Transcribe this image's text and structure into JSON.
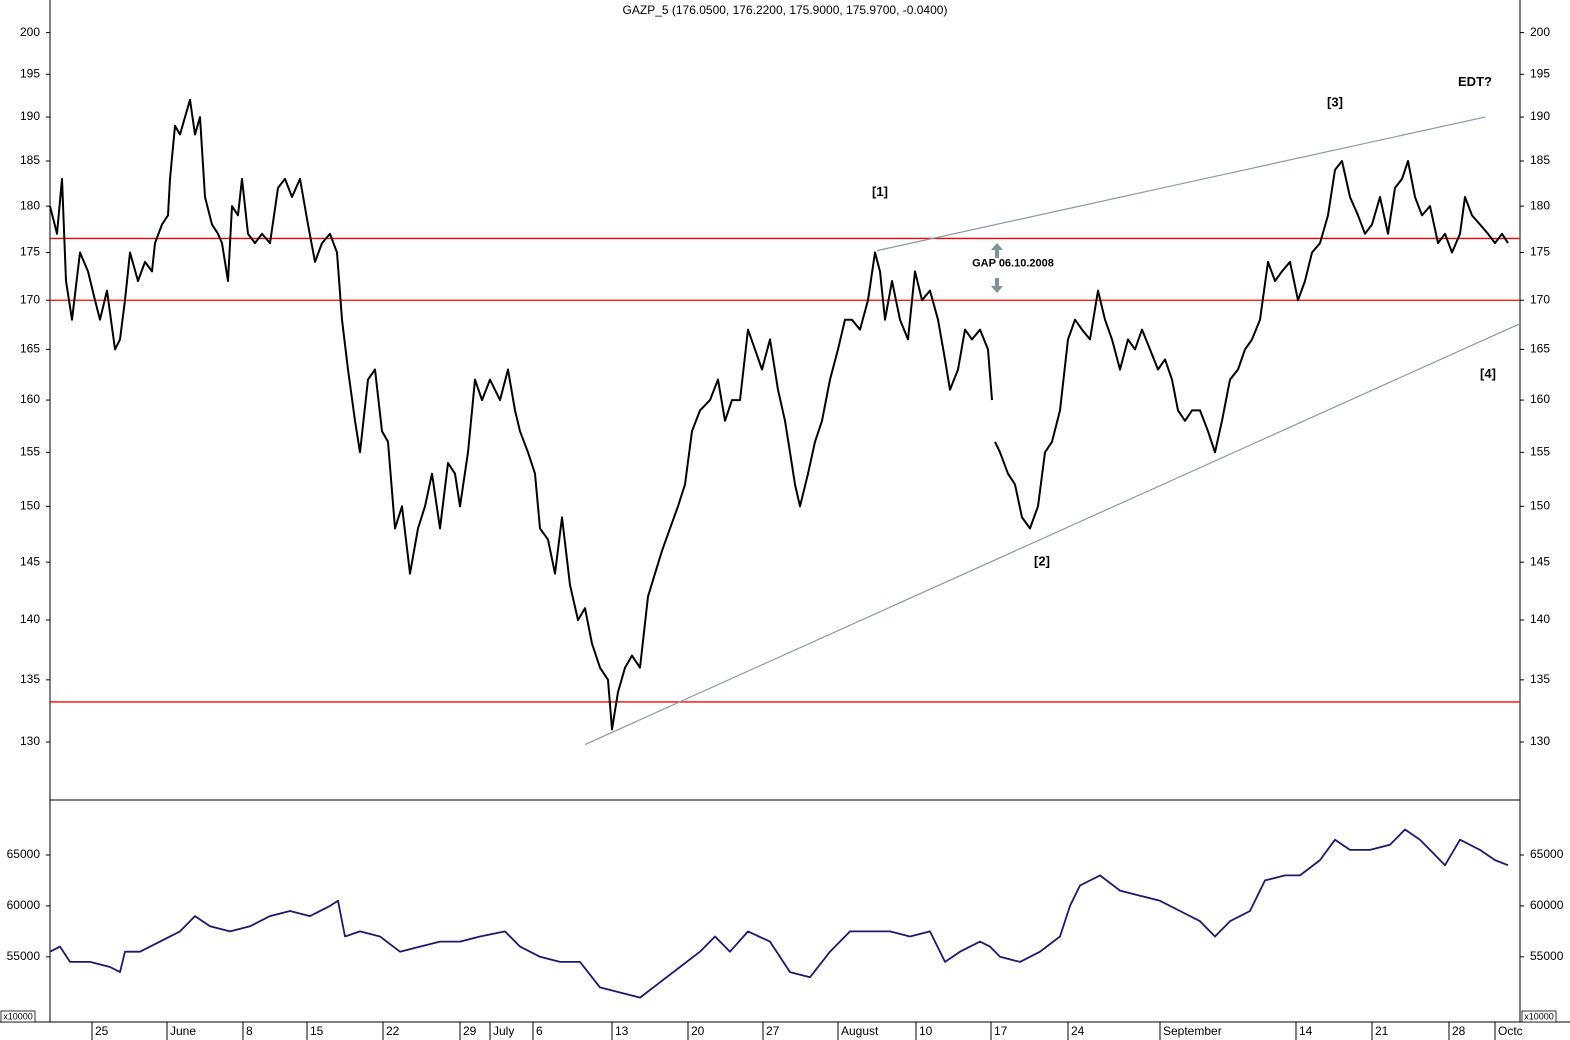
{
  "chart_data": [
    {
      "type": "line",
      "title": "GAZP_5 (176.0500, 176.2200, 175.9000, 175.9700, -0.0400)",
      "log_scale": true,
      "color": "#000000",
      "xlim": [
        0,
        1470
      ],
      "ylim": [
        125.5,
        204
      ],
      "yticks": [
        130,
        135,
        140,
        145,
        150,
        155,
        160,
        165,
        170,
        175,
        180,
        185,
        190,
        195,
        200
      ],
      "x": [
        0,
        7,
        12,
        16,
        22,
        30,
        38,
        45,
        50,
        57,
        65,
        70,
        75,
        80,
        88,
        95,
        102,
        105,
        112,
        118,
        120,
        125,
        130,
        135,
        140,
        145,
        150,
        155,
        162,
        168,
        172,
        178,
        182,
        188,
        192,
        198,
        205,
        212,
        220,
        228,
        235,
        242,
        250,
        258,
        265,
        272,
        280,
        287,
        292,
        298,
        305,
        310,
        318,
        325,
        332,
        338,
        345,
        352,
        360,
        368,
        375,
        382,
        390,
        398,
        405,
        410,
        418,
        425,
        432,
        440,
        450,
        458,
        465,
        470,
        478,
        485,
        490,
        498,
        505,
        512,
        520,
        528,
        535,
        542,
        550,
        558,
        562,
        568,
        575,
        582,
        590,
        598,
        605,
        612,
        620,
        628,
        635,
        642,
        650,
        660,
        668,
        675,
        682,
        690,
        698,
        705,
        712,
        720,
        728,
        735,
        740,
        745,
        750,
        758,
        765,
        772,
        780,
        788,
        795,
        802,
        810,
        818,
        825,
        830,
        835,
        842,
        850,
        858,
        865,
        872,
        880,
        888,
        895,
        900,
        908,
        915,
        922,
        930,
        938,
        942,
        943,
        945,
        950,
        958,
        965,
        972,
        980,
        988,
        995,
        1002,
        1010,
        1018,
        1025,
        1032,
        1040,
        1048,
        1055,
        1062,
        1070,
        1078,
        1085,
        1092,
        1100,
        1108,
        1115,
        1122,
        1128,
        1135,
        1142,
        1150,
        1158,
        1165,
        1172,
        1180,
        1188,
        1195,
        1202,
        1210,
        1218,
        1225,
        1232,
        1240,
        1248,
        1255,
        1262,
        1270,
        1278,
        1285,
        1292,
        1300,
        1308,
        1315,
        1322,
        1330,
        1338,
        1345,
        1352,
        1358,
        1365,
        1372,
        1380,
        1388,
        1395,
        1402,
        1410,
        1415,
        1422,
        1430,
        1438,
        1445,
        1452,
        1458
      ],
      "values": [
        180,
        177,
        183,
        172,
        168,
        175,
        173,
        170,
        168,
        171,
        165,
        166,
        170,
        175,
        172,
        174,
        173,
        176,
        178,
        179,
        183,
        189,
        188,
        190,
        192,
        188,
        190,
        181,
        178,
        177,
        176,
        172,
        180,
        179,
        183,
        177,
        176,
        177,
        176,
        182,
        183,
        181,
        183,
        178,
        174,
        176,
        177,
        175,
        168,
        163,
        158,
        155,
        162,
        163,
        157,
        156,
        148,
        150,
        144,
        148,
        150,
        153,
        148,
        154,
        153,
        150,
        155,
        162,
        160,
        162,
        160,
        163,
        159,
        157,
        155,
        153,
        148,
        147,
        144,
        149,
        143,
        140,
        141,
        138,
        136,
        135,
        131,
        134,
        136,
        137,
        136,
        142,
        144,
        146,
        148,
        150,
        152,
        157,
        159,
        160,
        162,
        158,
        160,
        160,
        167,
        165,
        163,
        166,
        161,
        158,
        155,
        152,
        150,
        153,
        156,
        158,
        162,
        165,
        168,
        168,
        167,
        170,
        175,
        173,
        168,
        172,
        168,
        166,
        173,
        170,
        171,
        168,
        164,
        161,
        163,
        167,
        166,
        167,
        165,
        160,
        null,
        156,
        155,
        153,
        152,
        149,
        148,
        150,
        155,
        156,
        159,
        166,
        168,
        167,
        166,
        171,
        168,
        166,
        163,
        166,
        165,
        167,
        165,
        163,
        164,
        162,
        159,
        158,
        159,
        159,
        157,
        155,
        158,
        162,
        163,
        165,
        166,
        168,
        174,
        172,
        173,
        174,
        170,
        172,
        175,
        176,
        179,
        184,
        185,
        181,
        179,
        177,
        178,
        181,
        177,
        182,
        183,
        185,
        181,
        179,
        180,
        176,
        177,
        175,
        177,
        181,
        179,
        178,
        177,
        176,
        177,
        176
      ],
      "hlines": {
        "values": [
          176.5,
          170,
          133.2
        ],
        "color": "#ff0000"
      },
      "trendlines": {
        "color": "#8899aa",
        "lines": [
          {
            "x": [
              827,
              1435
            ],
            "values": [
              175.2,
              190
            ]
          },
          {
            "x": [
              535,
              1470
            ],
            "values": [
              129.8,
              167.6
            ]
          }
        ]
      },
      "annotations": [
        {
          "text": "[1]",
          "x": 830,
          "y": 181.5,
          "color": "#808000"
        },
        {
          "text": "[2]",
          "x": 992,
          "y": 145,
          "color": "#808000"
        },
        {
          "text": "[3]",
          "x": 1285,
          "y": 191.6,
          "color": "#808000"
        },
        {
          "text": "[4]",
          "x": 1438,
          "y": 162.5,
          "color": "#808000"
        },
        {
          "text": "EDT?",
          "x": 1425,
          "y": 194,
          "color": "#1a1a80"
        },
        {
          "text": "GAP 06.10.2008",
          "x": 963,
          "y": 173.8,
          "color": "#1a1a80"
        }
      ]
    },
    {
      "type": "line",
      "color": "#1a1a6e",
      "scale_label": "x10000",
      "xlim": [
        0,
        1470
      ],
      "ylim": [
        48600,
        70400
      ],
      "yticks": [
        55000,
        60000,
        65000
      ],
      "xticks": [
        {
          "value": 42,
          "label": "25"
        },
        {
          "value": 117,
          "label": "June"
        },
        {
          "value": 193,
          "label": "8"
        },
        {
          "value": 257,
          "label": "15"
        },
        {
          "value": 333,
          "label": "22"
        },
        {
          "value": 410,
          "label": "29"
        },
        {
          "value": 440,
          "label": "July"
        },
        {
          "value": 483,
          "label": "6"
        },
        {
          "value": 562,
          "label": "13"
        },
        {
          "value": 638,
          "label": "20"
        },
        {
          "value": 713,
          "label": "27"
        },
        {
          "value": 788,
          "label": "August"
        },
        {
          "value": 866,
          "label": "10"
        },
        {
          "value": 941,
          "label": "17"
        },
        {
          "value": 1018,
          "label": "24"
        },
        {
          "value": 1110,
          "label": "September"
        },
        {
          "value": 1246,
          "label": "14"
        },
        {
          "value": 1322,
          "label": "21"
        },
        {
          "value": 1399,
          "label": "28"
        },
        {
          "value": 1445,
          "label": "Octc"
        }
      ],
      "x": [
        0,
        10,
        20,
        40,
        60,
        70,
        75,
        90,
        110,
        130,
        145,
        160,
        180,
        200,
        220,
        240,
        260,
        280,
        288,
        295,
        310,
        330,
        350,
        370,
        390,
        410,
        430,
        455,
        470,
        490,
        510,
        530,
        550,
        570,
        590,
        610,
        630,
        650,
        665,
        680,
        698,
        720,
        740,
        760,
        780,
        800,
        820,
        840,
        860,
        880,
        895,
        910,
        930,
        940,
        950,
        970,
        990,
        1010,
        1020,
        1030,
        1050,
        1070,
        1090,
        1110,
        1130,
        1150,
        1165,
        1180,
        1200,
        1215,
        1235,
        1250,
        1270,
        1285,
        1300,
        1320,
        1340,
        1355,
        1370,
        1380,
        1395,
        1410,
        1430,
        1445,
        1458
      ],
      "values": [
        55500,
        56000,
        54500,
        54500,
        54000,
        53500,
        55500,
        55500,
        56500,
        57500,
        59000,
        58000,
        57500,
        58000,
        59000,
        59500,
        59000,
        60000,
        60500,
        57000,
        57500,
        57000,
        55500,
        56000,
        56500,
        56500,
        57000,
        57500,
        56000,
        55000,
        54500,
        54500,
        52000,
        51500,
        51000,
        52500,
        54000,
        55500,
        57000,
        55500,
        57500,
        56500,
        53500,
        53000,
        55500,
        57500,
        57500,
        57500,
        57000,
        57500,
        54500,
        55500,
        56500,
        56000,
        55000,
        54500,
        55500,
        57000,
        60000,
        62000,
        63000,
        61500,
        61000,
        60500,
        59500,
        58500,
        57000,
        58500,
        59500,
        62500,
        63000,
        63000,
        64500,
        66500,
        65500,
        65500,
        66000,
        67500,
        66500,
        65500,
        64000,
        66500,
        65500,
        64500,
        64000
      ]
    }
  ]
}
